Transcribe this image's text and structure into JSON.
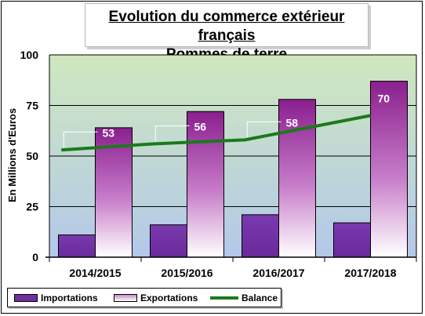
{
  "title": {
    "line1": "Evolution du commerce extérieur français",
    "line2": "Pommes de terre"
  },
  "legend": {
    "importations": "Importations",
    "exportations": "Exportations",
    "balance": "Balance"
  },
  "colors": {
    "importations": "#7030a0",
    "exportations_top": "#8b1f8f",
    "exportations_bottom": "#ffffff",
    "balance": "#1a7a1a",
    "plot_top": "#c9e4b8",
    "plot_bottom": "#b6c9e8"
  },
  "chart_data": {
    "type": "bar",
    "title": "Evolution du commerce extérieur français — Pommes de terre",
    "xlabel": "",
    "ylabel": "En Millions d'Euros",
    "ylim": [
      0,
      100
    ],
    "yticks": [
      0,
      25,
      50,
      75,
      100
    ],
    "grid": true,
    "legend_position": "bottom-left",
    "categories": [
      "2014/2015",
      "2015/2016",
      "2016/2017",
      "2017/2018"
    ],
    "series": [
      {
        "name": "Importations",
        "kind": "bar",
        "values": [
          11,
          16,
          21,
          17
        ]
      },
      {
        "name": "Exportations",
        "kind": "bar",
        "values": [
          64,
          72,
          78,
          87
        ]
      },
      {
        "name": "Balance",
        "kind": "line",
        "values": [
          53,
          56,
          58,
          70
        ],
        "labels": [
          "53",
          "56",
          "58",
          "70"
        ]
      }
    ]
  }
}
